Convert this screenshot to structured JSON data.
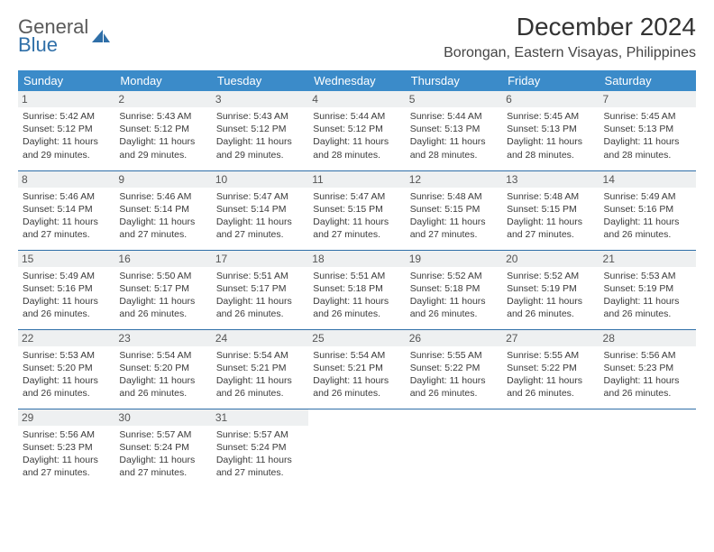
{
  "brand": {
    "word1": "General",
    "word2": "Blue"
  },
  "title": "December 2024",
  "location": "Borongan, Eastern Visayas, Philippines",
  "colors": {
    "header_bg": "#3b8bc9",
    "header_text": "#ffffff",
    "rule": "#2f6fa8",
    "daynum_bg": "#eef0f1",
    "body_text": "#3a3a3a",
    "brand_gray": "#5a5a5a",
    "brand_blue": "#2f6fa8",
    "page_bg": "#ffffff"
  },
  "typography": {
    "month_title_pt": 28,
    "location_pt": 16,
    "dayheader_pt": 13,
    "daynum_pt": 12,
    "cell_pt": 10.5,
    "logo_pt": 22,
    "family": "Arial"
  },
  "day_headers": [
    "Sunday",
    "Monday",
    "Tuesday",
    "Wednesday",
    "Thursday",
    "Friday",
    "Saturday"
  ],
  "labels": {
    "sunrise": "Sunrise:",
    "sunset": "Sunset:",
    "daylight": "Daylight:"
  },
  "days": [
    {
      "n": "1",
      "sunrise": "5:42 AM",
      "sunset": "5:12 PM",
      "daylight": "11 hours and 29 minutes."
    },
    {
      "n": "2",
      "sunrise": "5:43 AM",
      "sunset": "5:12 PM",
      "daylight": "11 hours and 29 minutes."
    },
    {
      "n": "3",
      "sunrise": "5:43 AM",
      "sunset": "5:12 PM",
      "daylight": "11 hours and 29 minutes."
    },
    {
      "n": "4",
      "sunrise": "5:44 AM",
      "sunset": "5:12 PM",
      "daylight": "11 hours and 28 minutes."
    },
    {
      "n": "5",
      "sunrise": "5:44 AM",
      "sunset": "5:13 PM",
      "daylight": "11 hours and 28 minutes."
    },
    {
      "n": "6",
      "sunrise": "5:45 AM",
      "sunset": "5:13 PM",
      "daylight": "11 hours and 28 minutes."
    },
    {
      "n": "7",
      "sunrise": "5:45 AM",
      "sunset": "5:13 PM",
      "daylight": "11 hours and 28 minutes."
    },
    {
      "n": "8",
      "sunrise": "5:46 AM",
      "sunset": "5:14 PM",
      "daylight": "11 hours and 27 minutes."
    },
    {
      "n": "9",
      "sunrise": "5:46 AM",
      "sunset": "5:14 PM",
      "daylight": "11 hours and 27 minutes."
    },
    {
      "n": "10",
      "sunrise": "5:47 AM",
      "sunset": "5:14 PM",
      "daylight": "11 hours and 27 minutes."
    },
    {
      "n": "11",
      "sunrise": "5:47 AM",
      "sunset": "5:15 PM",
      "daylight": "11 hours and 27 minutes."
    },
    {
      "n": "12",
      "sunrise": "5:48 AM",
      "sunset": "5:15 PM",
      "daylight": "11 hours and 27 minutes."
    },
    {
      "n": "13",
      "sunrise": "5:48 AM",
      "sunset": "5:15 PM",
      "daylight": "11 hours and 27 minutes."
    },
    {
      "n": "14",
      "sunrise": "5:49 AM",
      "sunset": "5:16 PM",
      "daylight": "11 hours and 26 minutes."
    },
    {
      "n": "15",
      "sunrise": "5:49 AM",
      "sunset": "5:16 PM",
      "daylight": "11 hours and 26 minutes."
    },
    {
      "n": "16",
      "sunrise": "5:50 AM",
      "sunset": "5:17 PM",
      "daylight": "11 hours and 26 minutes."
    },
    {
      "n": "17",
      "sunrise": "5:51 AM",
      "sunset": "5:17 PM",
      "daylight": "11 hours and 26 minutes."
    },
    {
      "n": "18",
      "sunrise": "5:51 AM",
      "sunset": "5:18 PM",
      "daylight": "11 hours and 26 minutes."
    },
    {
      "n": "19",
      "sunrise": "5:52 AM",
      "sunset": "5:18 PM",
      "daylight": "11 hours and 26 minutes."
    },
    {
      "n": "20",
      "sunrise": "5:52 AM",
      "sunset": "5:19 PM",
      "daylight": "11 hours and 26 minutes."
    },
    {
      "n": "21",
      "sunrise": "5:53 AM",
      "sunset": "5:19 PM",
      "daylight": "11 hours and 26 minutes."
    },
    {
      "n": "22",
      "sunrise": "5:53 AM",
      "sunset": "5:20 PM",
      "daylight": "11 hours and 26 minutes."
    },
    {
      "n": "23",
      "sunrise": "5:54 AM",
      "sunset": "5:20 PM",
      "daylight": "11 hours and 26 minutes."
    },
    {
      "n": "24",
      "sunrise": "5:54 AM",
      "sunset": "5:21 PM",
      "daylight": "11 hours and 26 minutes."
    },
    {
      "n": "25",
      "sunrise": "5:54 AM",
      "sunset": "5:21 PM",
      "daylight": "11 hours and 26 minutes."
    },
    {
      "n": "26",
      "sunrise": "5:55 AM",
      "sunset": "5:22 PM",
      "daylight": "11 hours and 26 minutes."
    },
    {
      "n": "27",
      "sunrise": "5:55 AM",
      "sunset": "5:22 PM",
      "daylight": "11 hours and 26 minutes."
    },
    {
      "n": "28",
      "sunrise": "5:56 AM",
      "sunset": "5:23 PM",
      "daylight": "11 hours and 26 minutes."
    },
    {
      "n": "29",
      "sunrise": "5:56 AM",
      "sunset": "5:23 PM",
      "daylight": "11 hours and 27 minutes."
    },
    {
      "n": "30",
      "sunrise": "5:57 AM",
      "sunset": "5:24 PM",
      "daylight": "11 hours and 27 minutes."
    },
    {
      "n": "31",
      "sunrise": "5:57 AM",
      "sunset": "5:24 PM",
      "daylight": "11 hours and 27 minutes."
    }
  ],
  "grid": {
    "rows": 5,
    "cols": 7,
    "trailing_empty": 4
  }
}
